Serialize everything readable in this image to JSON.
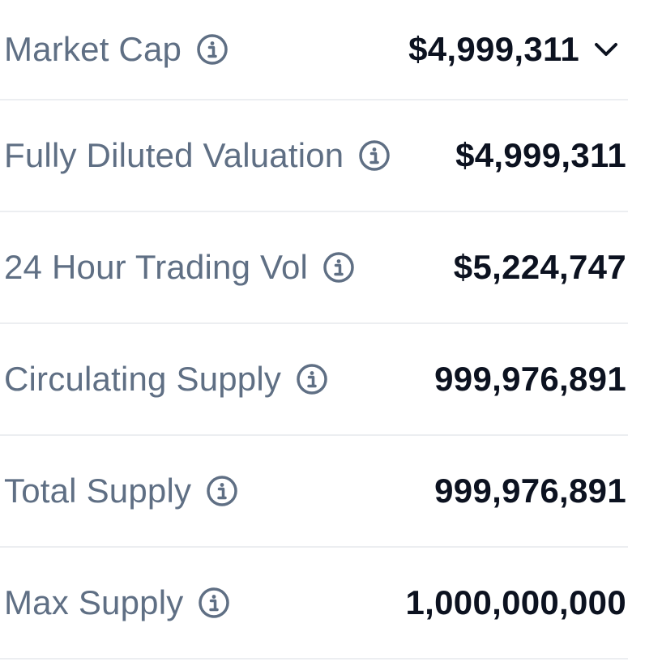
{
  "stats": [
    {
      "label": "Market Cap",
      "value": "$4,999,311",
      "expandable": true
    },
    {
      "label": "Fully Diluted Valuation",
      "value": "$4,999,311",
      "expandable": false
    },
    {
      "label": "24 Hour Trading Vol",
      "value": "$5,224,747",
      "expandable": false
    },
    {
      "label": "Circulating Supply",
      "value": "999,976,891",
      "expandable": false
    },
    {
      "label": "Total Supply",
      "value": "999,976,891",
      "expandable": false
    },
    {
      "label": "Max Supply",
      "value": "1,000,000,000",
      "expandable": false
    }
  ],
  "icons": {
    "info": "info-circle-icon",
    "expand": "chevron-down-icon"
  },
  "colors": {
    "label": "#5f6f84",
    "value": "#0c1220",
    "divider": "#eceef1"
  }
}
